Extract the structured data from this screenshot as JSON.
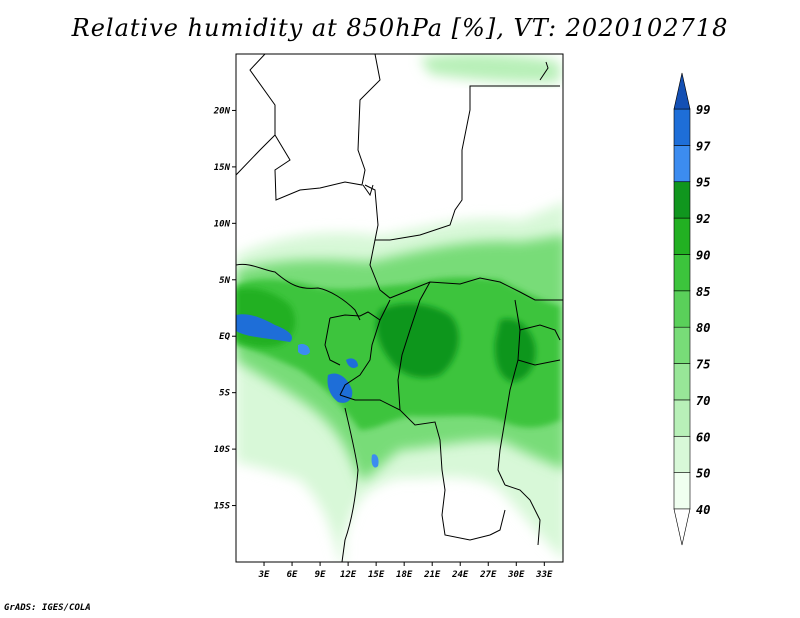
{
  "title": "Relative humidity at 850hPa [%], VT: 2020102718",
  "credit": "GrADS: IGES/COLA",
  "map": {
    "lon_range": [
      0,
      35
    ],
    "lat_range": [
      -20,
      25
    ],
    "lat_ticks": [
      {
        "value": 20,
        "label": "20N"
      },
      {
        "value": 15,
        "label": "15N"
      },
      {
        "value": 10,
        "label": "10N"
      },
      {
        "value": 5,
        "label": "5N"
      },
      {
        "value": 0,
        "label": "EQ"
      },
      {
        "value": -5,
        "label": "5S"
      },
      {
        "value": -10,
        "label": "10S"
      },
      {
        "value": -15,
        "label": "15S"
      }
    ],
    "lon_ticks": [
      {
        "value": 3,
        "label": "3E"
      },
      {
        "value": 6,
        "label": "6E"
      },
      {
        "value": 9,
        "label": "9E"
      },
      {
        "value": 12,
        "label": "12E"
      },
      {
        "value": 15,
        "label": "15E"
      },
      {
        "value": 18,
        "label": "18E"
      },
      {
        "value": 21,
        "label": "21E"
      },
      {
        "value": 24,
        "label": "24E"
      },
      {
        "value": 27,
        "label": "27E"
      },
      {
        "value": 30,
        "label": "30E"
      },
      {
        "value": 33,
        "label": "33E"
      }
    ]
  },
  "colorbar": {
    "levels": [
      {
        "label": "40",
        "color": "#f0fff0"
      },
      {
        "label": "50",
        "color": "#d8f8d8"
      },
      {
        "label": "60",
        "color": "#b8f0b8"
      },
      {
        "label": "70",
        "color": "#98e698"
      },
      {
        "label": "75",
        "color": "#78dc78"
      },
      {
        "label": "80",
        "color": "#5ad05a"
      },
      {
        "label": "85",
        "color": "#3cc43c"
      },
      {
        "label": "90",
        "color": "#22b022"
      },
      {
        "label": "92",
        "color": "#10961e"
      },
      {
        "label": "95",
        "color": "#3c8cf0"
      },
      {
        "label": "97",
        "color": "#1e6ed8"
      },
      {
        "label": "99",
        "color": "#1450b4"
      }
    ],
    "below_color": "#ffffff",
    "above_color": "#1450b4"
  }
}
